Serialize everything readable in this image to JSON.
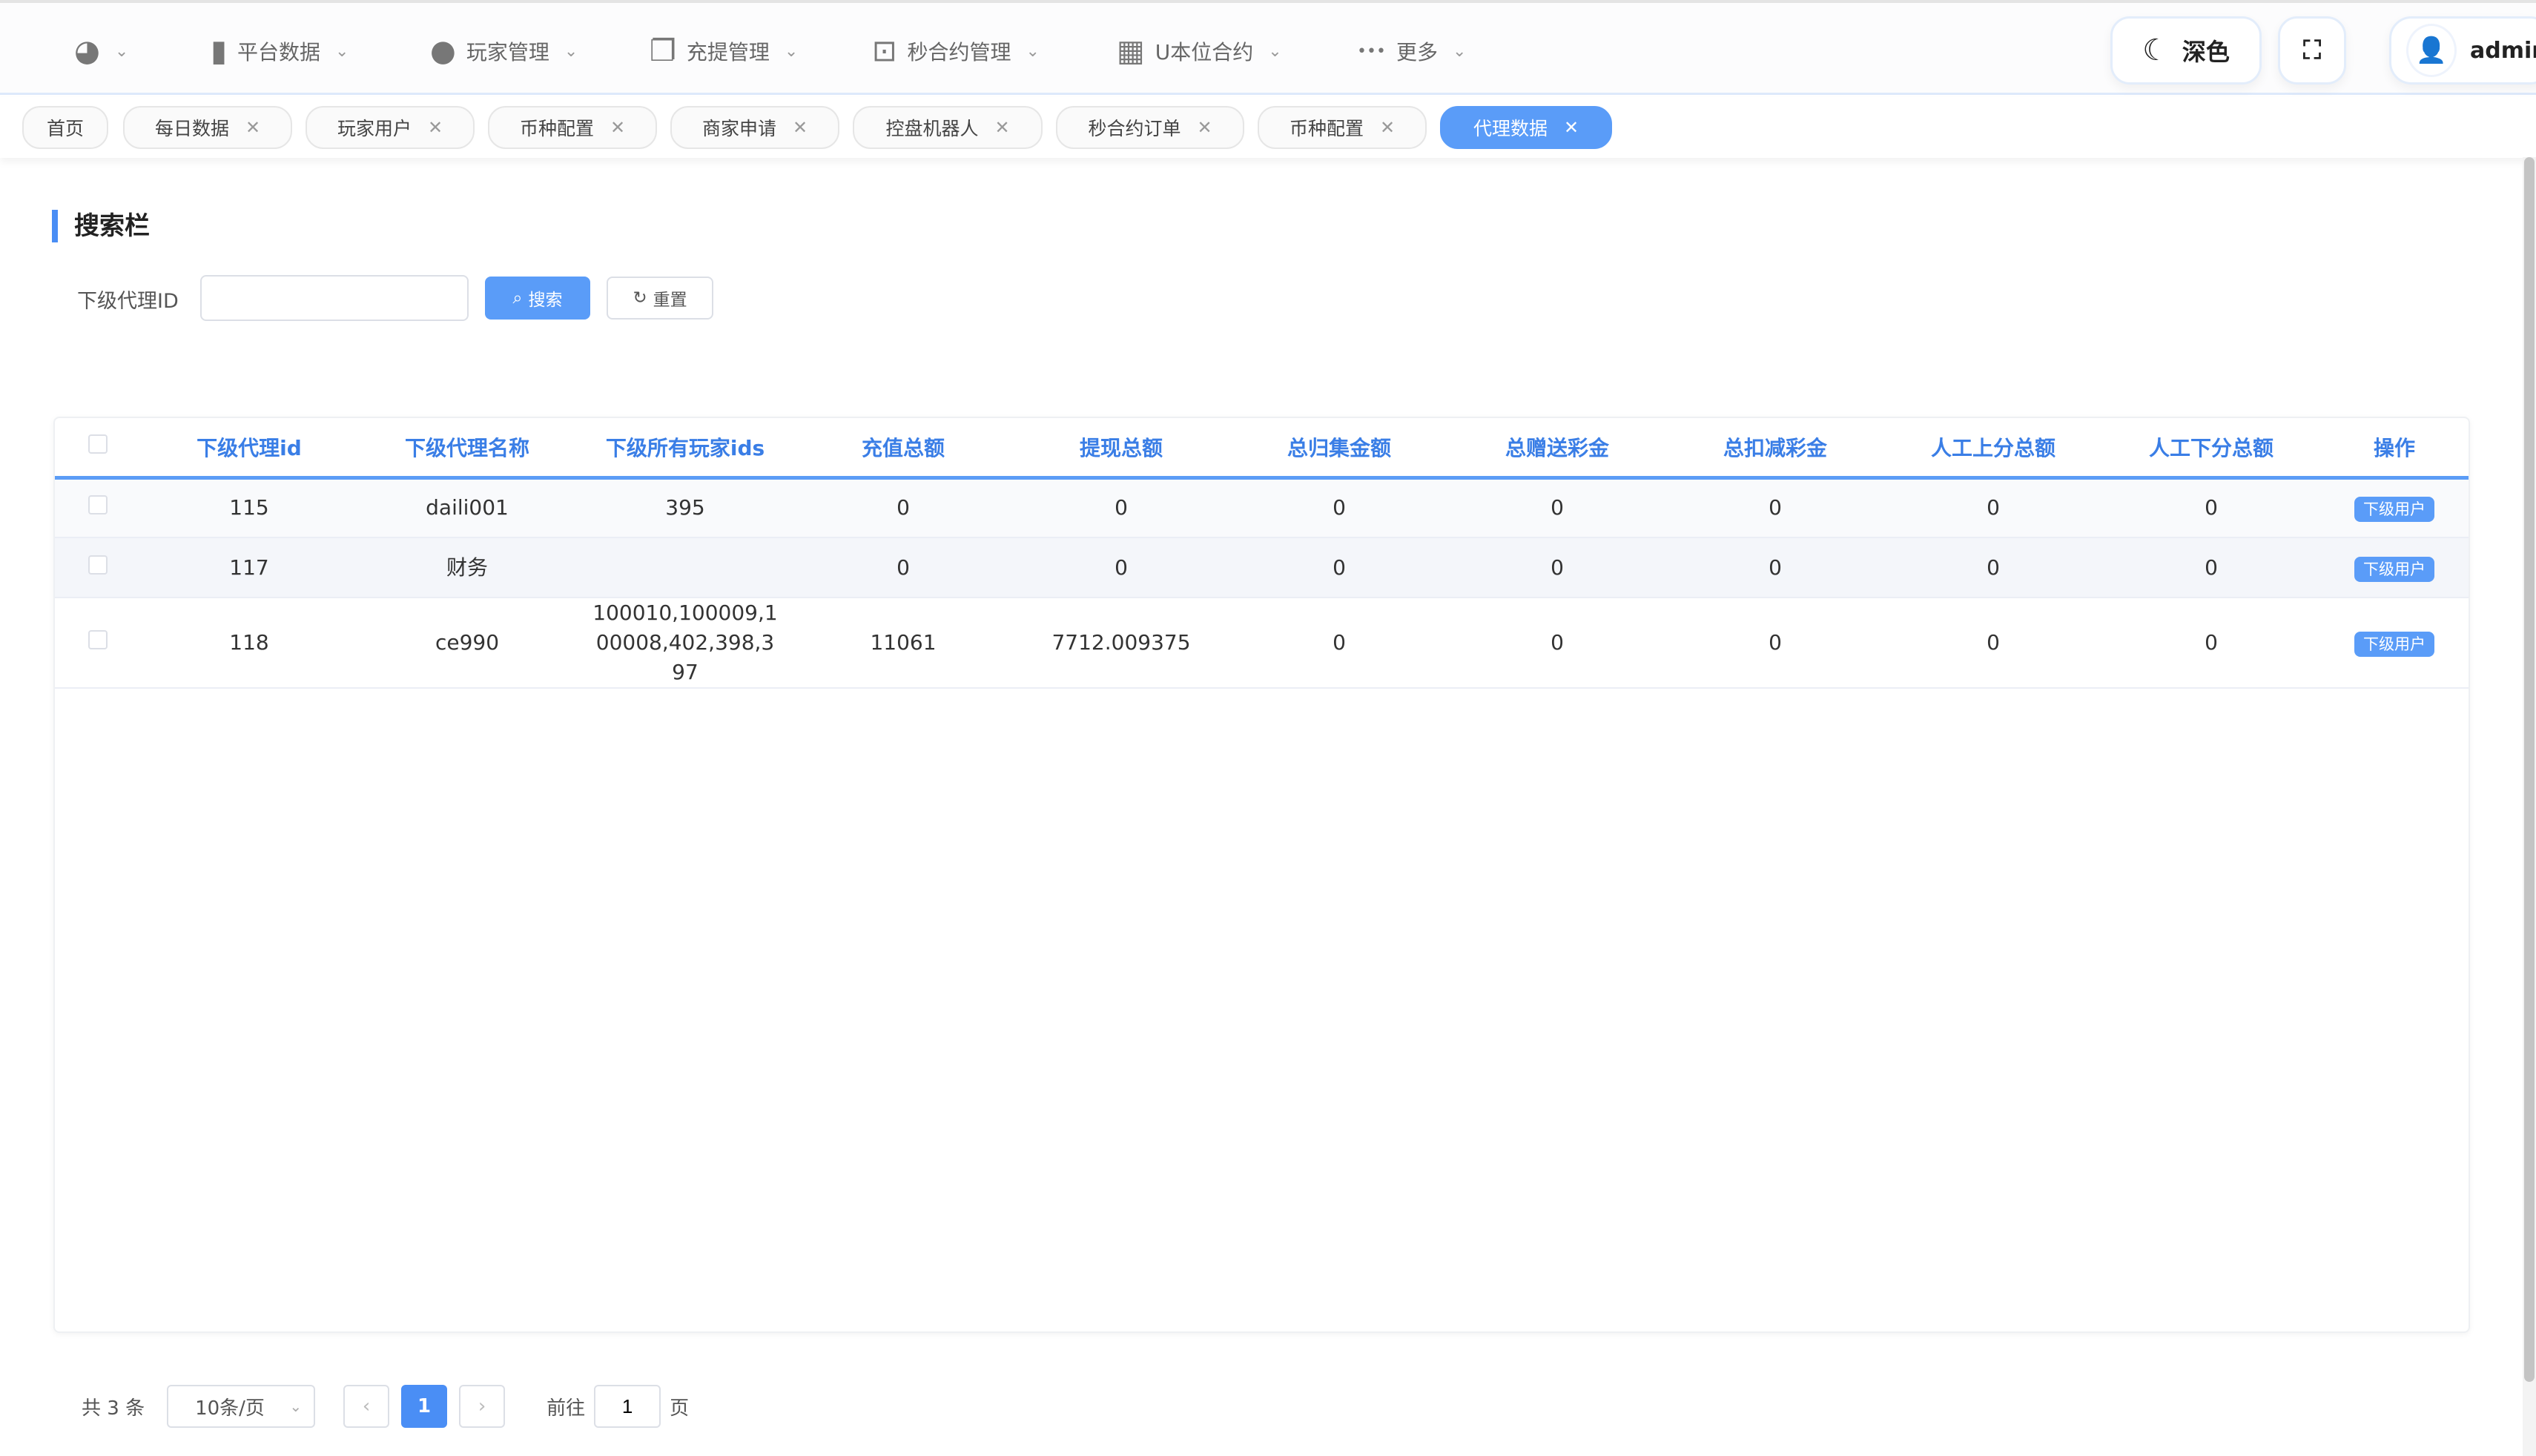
{
  "nav": {
    "items": [
      {
        "icon": "dashboard-icon",
        "label": ""
      },
      {
        "icon": "book-icon",
        "label": "平台数据"
      },
      {
        "icon": "user-icon",
        "label": "玩家管理"
      },
      {
        "icon": "document-icon",
        "label": "充提管理"
      },
      {
        "icon": "chart-monitor-icon",
        "label": "秒合约管理"
      },
      {
        "icon": "grid-icon",
        "label": "U本位合约"
      },
      {
        "icon": "more-icon",
        "label": "更多"
      }
    ],
    "theme_label": "深色",
    "user": "admin"
  },
  "tabs": [
    {
      "label": "首页",
      "closable": false
    },
    {
      "label": "每日数据",
      "closable": true
    },
    {
      "label": "玩家用户",
      "closable": true
    },
    {
      "label": "币种配置",
      "closable": true
    },
    {
      "label": "商家申请",
      "closable": true
    },
    {
      "label": "控盘机器人",
      "closable": true
    },
    {
      "label": "秒合约订单",
      "closable": true
    },
    {
      "label": "币种配置",
      "closable": true
    },
    {
      "label": "代理数据",
      "closable": true,
      "active": true
    }
  ],
  "search": {
    "title": "搜索栏",
    "field_label": "下级代理ID",
    "field_value": "",
    "search_label": "搜索",
    "reset_label": "重置"
  },
  "table": {
    "headers": [
      "下级代理id",
      "下级代理名称",
      "下级所有玩家ids",
      "充值总额",
      "提现总额",
      "总归集金额",
      "总赠送彩金",
      "总扣减彩金",
      "人工上分总额",
      "人工下分总额",
      "操作"
    ],
    "rows": [
      [
        "115",
        "daili001",
        "395",
        "0",
        "0",
        "0",
        "0",
        "0",
        "0",
        "0"
      ],
      [
        "117",
        "财务",
        "",
        "0",
        "0",
        "0",
        "0",
        "0",
        "0",
        "0"
      ],
      [
        "118",
        "ce990",
        "100010,100009,100008,402,398,397",
        "11061",
        "7712.009375",
        "0",
        "0",
        "0",
        "0",
        "0"
      ]
    ],
    "action_label": "下级用户"
  },
  "pagination": {
    "total": "共 3 条",
    "page_size": "10条/页",
    "current": "1",
    "goto_label": "前往",
    "goto_value": "1",
    "page_suffix": "页"
  },
  "colors": {
    "accent": "#5a9cf8",
    "header_text": "#3a7ee6"
  }
}
